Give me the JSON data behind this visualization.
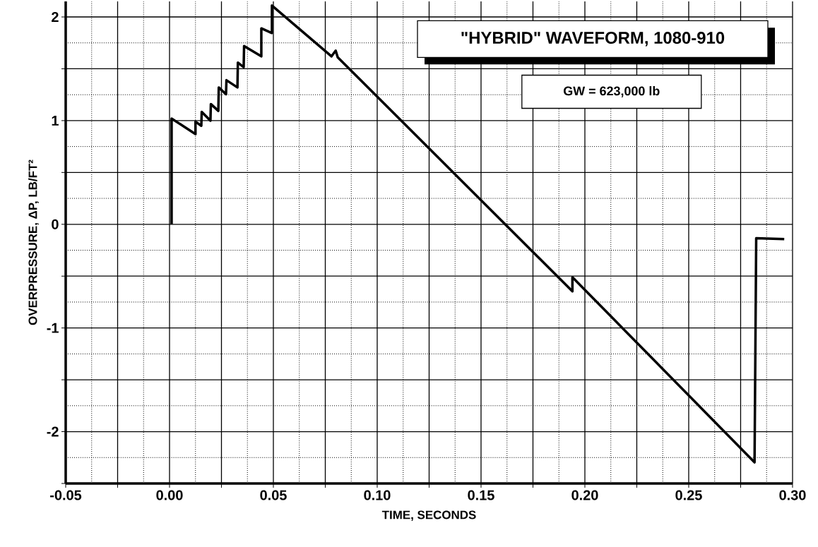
{
  "chart_data": {
    "type": "line",
    "title": "\"HYBRID\" WAVEFORM, 1080-910",
    "xlabel": "TIME, SECONDS",
    "ylabel": "OVERPRESSURE, ΔP, LB/FT²",
    "annotations": [
      "GW = 623,000 lb"
    ],
    "series": [
      {
        "color": "#000000",
        "x": [
          0.001,
          0.001,
          0.0125,
          0.0125,
          0.0153,
          0.0155,
          0.0197,
          0.0199,
          0.0235,
          0.0237,
          0.0272,
          0.0274,
          0.0327,
          0.0329,
          0.0357,
          0.0359,
          0.0442,
          0.0442,
          0.0493,
          0.0493,
          0.078,
          0.08,
          0.081,
          0.194,
          0.194,
          0.2817,
          0.2825,
          0.296
        ],
        "values": [
          0,
          1.02,
          0.87,
          0.99,
          0.95,
          1.085,
          1.0,
          1.16,
          1.094,
          1.32,
          1.255,
          1.39,
          1.32,
          1.56,
          1.515,
          1.72,
          1.62,
          1.89,
          1.845,
          2.11,
          1.62,
          1.675,
          1.61,
          -0.646,
          -0.51,
          -2.296,
          -0.134,
          -0.143
        ]
      }
    ],
    "xlim": [
      -0.05,
      0.3
    ],
    "ylim": [
      -2.5,
      2.15
    ],
    "xticks": [
      {
        "value": -0.05,
        "label": "-0.05"
      },
      {
        "value": -0.025,
        "label": null
      },
      {
        "value": 0,
        "label": "0.00"
      },
      {
        "value": 0.025,
        "label": null
      },
      {
        "value": 0.05,
        "label": "0.05"
      },
      {
        "value": 0.075,
        "label": null
      },
      {
        "value": 0.1,
        "label": "0.10"
      },
      {
        "value": 0.125,
        "label": null
      },
      {
        "value": 0.15,
        "label": "0.15"
      },
      {
        "value": 0.175,
        "label": null
      },
      {
        "value": 0.2,
        "label": "0.20"
      },
      {
        "value": 0.225,
        "label": null
      },
      {
        "value": 0.25,
        "label": "0.25"
      },
      {
        "value": 0.275,
        "label": null
      },
      {
        "value": 0.3,
        "label": "0.30"
      }
    ],
    "yticks": [
      {
        "value": -2.5,
        "label": null
      },
      -2,
      {
        "value": -1.5,
        "label": null
      },
      -1,
      {
        "value": -0.5,
        "label": null
      },
      0,
      {
        "value": 0.5,
        "label": null
      },
      1,
      {
        "value": 1.5,
        "label": null
      },
      2
    ],
    "grid": true,
    "marker": "none",
    "line_style": "solid"
  }
}
